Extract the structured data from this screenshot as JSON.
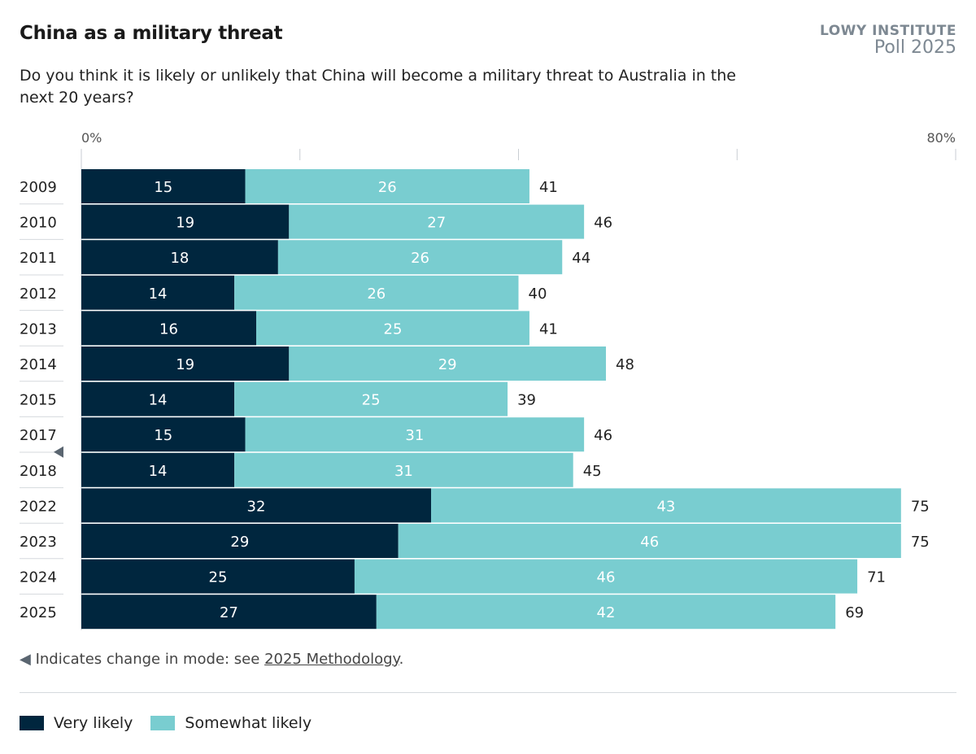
{
  "header": {
    "logo_line1": "LOWY INSTITUTE",
    "logo_line2": "Poll 2025"
  },
  "chart_data": {
    "type": "bar",
    "orientation": "horizontal",
    "stacked": true,
    "title": "China as a military threat",
    "subtitle": "Do you think it is likely or unlikely that China will become a military threat to Australia in the next 20 years?",
    "categories": [
      "2009",
      "2010",
      "2011",
      "2012",
      "2013",
      "2014",
      "2015",
      "2017",
      "2018",
      "2022",
      "2023",
      "2024",
      "2025"
    ],
    "series": [
      {
        "name": "Very likely",
        "color": "#00263e",
        "values": [
          15,
          19,
          18,
          14,
          16,
          19,
          14,
          15,
          14,
          32,
          29,
          25,
          27
        ]
      },
      {
        "name": "Somewhat likely",
        "color": "#79cdd0",
        "values": [
          26,
          27,
          26,
          26,
          25,
          29,
          25,
          31,
          31,
          43,
          46,
          46,
          42
        ]
      }
    ],
    "totals": [
      41,
      46,
      44,
      40,
      41,
      48,
      39,
      46,
      45,
      75,
      75,
      71,
      69
    ],
    "xlim": [
      0,
      80
    ],
    "x_ticks": [
      0,
      20,
      40,
      60,
      80
    ],
    "x_tick_labels": {
      "0": "0%",
      "80": "80%"
    },
    "grid": true,
    "legend_position": "bottom-left",
    "mode_change_before": "2018"
  },
  "footnote": {
    "marker": "◀",
    "text": "Indicates change in mode: see ",
    "link": "2025 Methodology",
    "end": "."
  }
}
